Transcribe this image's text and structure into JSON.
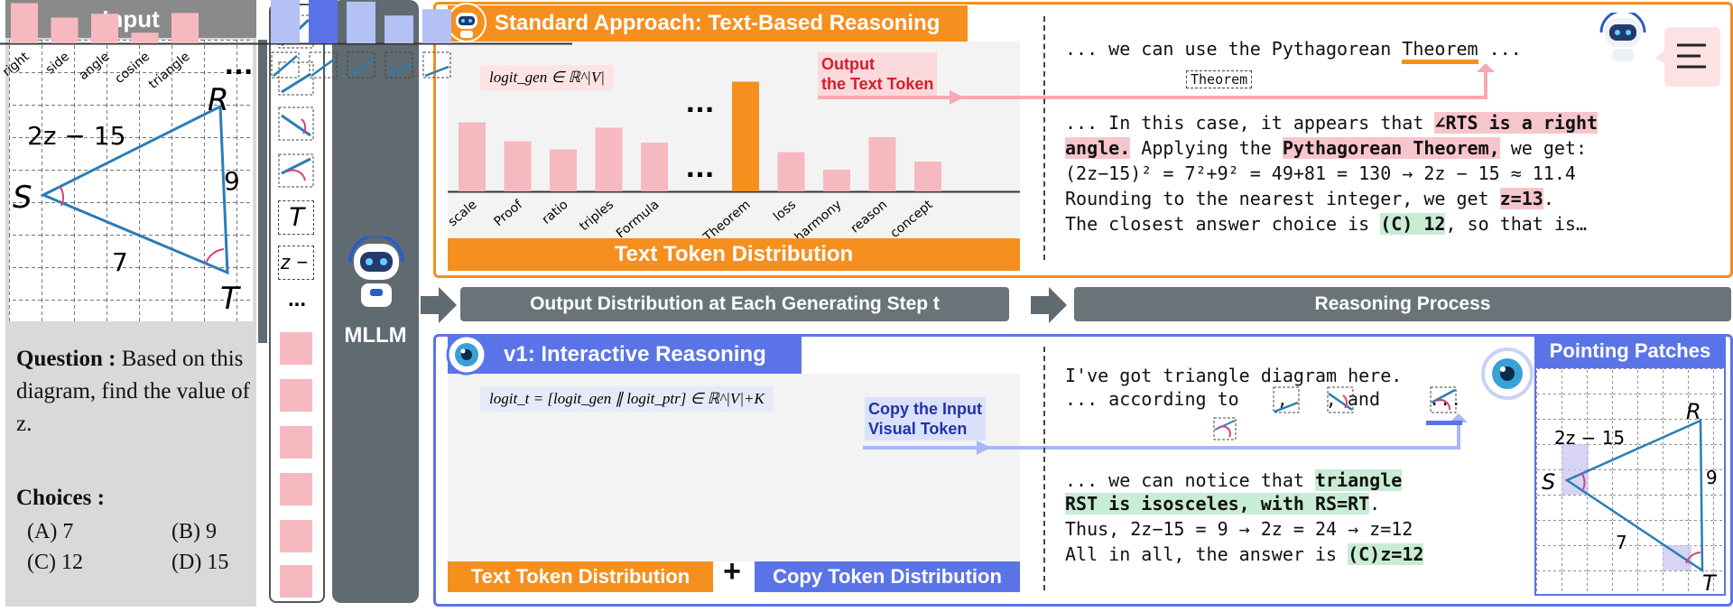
{
  "input": {
    "title": "Input",
    "diagram_labels": {
      "r": "R",
      "s": "S",
      "t": "T",
      "side_sr": "2z − 15",
      "side_rt": "9",
      "side_st": "7"
    },
    "question_label": "Question :",
    "question_text": " Based on this diagram, find the value of z.",
    "choices_label": "Choices :",
    "choices": [
      "(A) 7",
      "(B) 9",
      "(C) 12",
      "(D) 15"
    ]
  },
  "token_strip": {
    "letter_t": "T",
    "letter_z": "z −",
    "ellipsis": "..."
  },
  "mllm": {
    "label": "MLLM"
  },
  "standard": {
    "title": "Standard Approach: Text-Based Reasoning",
    "formula": "logit_gen ∈ ℝ^|V|",
    "output_label_1": "Output",
    "output_label_2": "the Text Token",
    "categories": [
      "scale",
      "Proof",
      "ratio",
      "triples",
      "Formula",
      "...",
      "Theorem",
      "loss",
      "harmony",
      "reason",
      "concept"
    ],
    "dots": "...",
    "dist_label": "Text Token Distribution",
    "reasoning": {
      "line1": "... we can use the Pythagorean ",
      "line1_word": "Theorem",
      "line1_end": " ...",
      "token_box": "Theorem",
      "line2a": "... In this case, it appears that ",
      "line2_hl": "∠RTS is a right",
      "line3_hl": "angle.",
      "line3a": " Applying the ",
      "line3_hl2": "Pythagorean Theorem,",
      "line3b": " we get:",
      "line4": "(2z−15)² = 7²+9² = 49+81 = 130 → 2z − 15 ≈ 11.4",
      "line5a": "Rounding to the nearest integer, we get ",
      "line5_hl": "z=13",
      "line5b": ".",
      "line6a": "The closest answer choice is ",
      "line6_hl": "(C) 12",
      "line6b": ", so that is…"
    }
  },
  "middle": {
    "bar1_text": "Output Distribution at Each Generating Step t",
    "bar2_text": "Reasoning Process"
  },
  "v1": {
    "title": "v1: Interactive Reasoning",
    "formula": "logit_t = [logit_gen ∥ logit_ptr] ∈ ℝ^|V|+K",
    "copy_label_1": "Copy the Input",
    "copy_label_2": "Visual Token",
    "categories": [
      "right",
      "side",
      "angle",
      "cosine",
      "triangle"
    ],
    "dots": "...",
    "text_dist_label": "Text Token Distribution",
    "plus": "+",
    "copy_dist_label": "Copy Token Distribution",
    "reasoning": {
      "line1": "I've got triangle diagram here.",
      "line2a": "... according to ",
      "line2b": ", ",
      "line2c": ", and ",
      "line2d": " ...",
      "line3a": "... we can notice that ",
      "line3_hl": "triangle",
      "line4_hl": "RST is isosceles, with RS=RT",
      "line4b": ".",
      "line5": "Thus, 2z−15 = 9 → 2z = 24 → z=12",
      "line6a": "All in all, the answer is ",
      "line6_hl": "(C)z=12"
    },
    "pointing_title": "Pointing Patches"
  },
  "chart_data": [
    {
      "type": "bar",
      "categories": [
        "scale",
        "Proof",
        "ratio",
        "triples",
        "Formula",
        "Theorem",
        "loss",
        "harmony",
        "reason",
        "concept"
      ],
      "values": [
        0.51,
        0.37,
        0.31,
        0.47,
        0.36,
        0.81,
        0.29,
        0.16,
        0.4,
        0.22
      ]
    },
    {
      "type": "bar",
      "categories": [
        "right",
        "side",
        "angle",
        "cosine",
        "triangle"
      ],
      "values": [
        0.53,
        0.34,
        0.39,
        0.14,
        0.4
      ],
      "series": [
        {
          "name": "Text Token Distribution",
          "values": [
            0.53,
            0.34,
            0.39,
            0.14,
            0.4
          ]
        },
        {
          "name": "Copy Token Distribution",
          "values": [
            0.51,
            1.0,
            0.33,
            0.22,
            0.27
          ]
        }
      ]
    }
  ],
  "colors": {
    "orange": "#f58f1e",
    "blue": "#5a74e8",
    "pink": "#f7b9c0",
    "grey": "#606a71"
  }
}
